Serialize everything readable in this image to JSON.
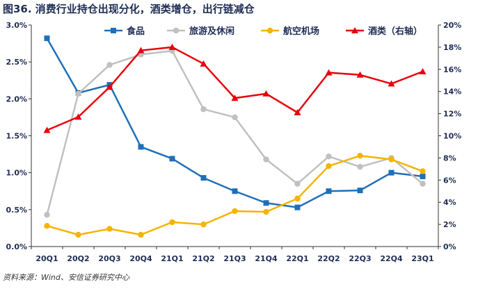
{
  "title": "图36. 消费行业持仓出现分化，酒类增仓，出行链减仓",
  "source": "资料来源：Wind、安信证券研究中心",
  "chart_data": {
    "type": "line",
    "categories": [
      "20Q1",
      "20Q2",
      "20Q3",
      "20Q4",
      "21Q1",
      "21Q2",
      "21Q3",
      "21Q4",
      "22Q1",
      "22Q2",
      "22Q3",
      "22Q4",
      "23Q1"
    ],
    "left_axis": {
      "min": 0,
      "max": 3.0,
      "step": 0.5,
      "ticks": [
        "0.0%",
        "0.5%",
        "1.0%",
        "1.5%",
        "2.0%",
        "2.5%",
        "3.0%"
      ]
    },
    "right_axis": {
      "min": 0,
      "max": 20,
      "step": 2,
      "ticks": [
        "0%",
        "2%",
        "4%",
        "6%",
        "8%",
        "10%",
        "12%",
        "14%",
        "16%",
        "18%",
        "20%"
      ]
    },
    "series": [
      {
        "name": "食品",
        "axis": "left",
        "color": "#1f6fb8",
        "marker": "square",
        "values": [
          2.82,
          2.08,
          2.19,
          1.35,
          1.19,
          0.93,
          0.75,
          0.59,
          0.53,
          0.75,
          0.76,
          1.0,
          0.95
        ]
      },
      {
        "name": "旅游及休闲",
        "axis": "left",
        "color": "#c0c0c0",
        "marker": "circle",
        "values": [
          0.43,
          2.07,
          2.46,
          2.6,
          2.65,
          1.86,
          1.75,
          1.18,
          0.85,
          1.22,
          1.08,
          1.2,
          0.85
        ]
      },
      {
        "name": "航空机场",
        "axis": "left",
        "color": "#f5b400",
        "marker": "circle",
        "values": [
          0.28,
          0.16,
          0.24,
          0.16,
          0.33,
          0.3,
          0.48,
          0.47,
          0.65,
          1.09,
          1.23,
          1.18,
          1.02
        ]
      },
      {
        "name": "酒类（右轴）",
        "axis": "right",
        "color": "#e8000b",
        "marker": "triangle",
        "values": [
          10.5,
          11.7,
          14.4,
          17.7,
          18.0,
          16.5,
          13.4,
          13.8,
          12.1,
          15.7,
          15.5,
          14.7,
          15.8
        ]
      }
    ]
  }
}
